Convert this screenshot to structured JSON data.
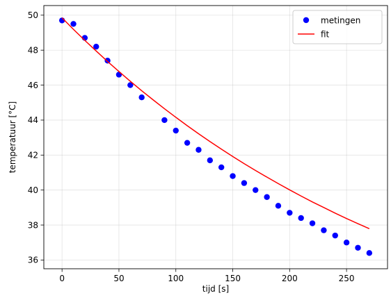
{
  "chart_data": {
    "type": "scatter",
    "title": "",
    "xlabel": "tijd [s]",
    "ylabel": "temperatuur [°C]",
    "xlim": [
      -16,
      286
    ],
    "ylim": [
      35.5,
      50.55
    ],
    "xticks": [
      0,
      50,
      100,
      150,
      200,
      250
    ],
    "yticks": [
      36,
      38,
      40,
      42,
      44,
      46,
      48,
      50
    ],
    "grid": true,
    "legend": {
      "placement": "top-right"
    },
    "series": [
      {
        "name": "metingen",
        "kind": "markers",
        "color": "#0000ff",
        "x": [
          0,
          10,
          20,
          30,
          40,
          50,
          60,
          70,
          90,
          100,
          110,
          120,
          130,
          140,
          150,
          160,
          170,
          180,
          190,
          200,
          210,
          220,
          230,
          240,
          250,
          260,
          270
        ],
        "y": [
          49.7,
          49.5,
          48.7,
          48.2,
          47.4,
          46.6,
          46.0,
          45.3,
          44.0,
          43.4,
          42.7,
          42.3,
          41.7,
          41.3,
          40.8,
          40.4,
          40.0,
          39.6,
          39.1,
          38.7,
          38.4,
          38.1,
          37.7,
          37.4,
          37.0,
          36.7,
          36.4
        ]
      },
      {
        "name": "fit",
        "kind": "line",
        "color": "#ff0000",
        "x": [
          0,
          10,
          20,
          30,
          40,
          50,
          60,
          70,
          80,
          90,
          100,
          110,
          120,
          130,
          140,
          150,
          160,
          170,
          180,
          190,
          200,
          210,
          220,
          230,
          240,
          250,
          260,
          270
        ],
        "y": [
          49.85,
          49.19,
          48.56,
          47.95,
          47.35,
          46.78,
          46.22,
          45.68,
          45.16,
          44.65,
          44.16,
          43.68,
          43.22,
          42.77,
          42.34,
          41.92,
          41.51,
          41.12,
          40.74,
          40.37,
          40.01,
          39.66,
          39.32,
          39.0,
          38.68,
          38.37,
          38.08,
          37.79
        ]
      }
    ]
  }
}
